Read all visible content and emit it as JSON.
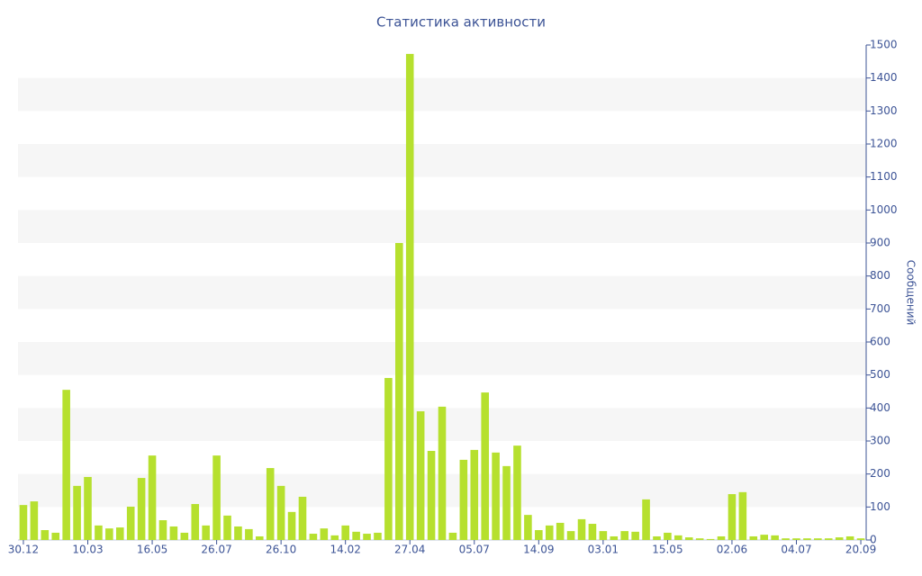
{
  "chart_data": {
    "type": "bar",
    "title": "Статистика активности",
    "y_label": "Сообщений",
    "categories": [
      "30.12",
      null,
      null,
      null,
      null,
      null,
      "10.03",
      null,
      null,
      null,
      null,
      null,
      "16.05",
      null,
      null,
      null,
      null,
      null,
      "26.07",
      null,
      null,
      null,
      null,
      null,
      "26.10",
      null,
      null,
      null,
      null,
      null,
      "14.02",
      null,
      null,
      null,
      null,
      null,
      "27.04",
      null,
      null,
      null,
      null,
      null,
      "05.07",
      null,
      null,
      null,
      null,
      null,
      "14.09",
      null,
      null,
      null,
      null,
      null,
      "03.01",
      null,
      null,
      null,
      null,
      null,
      "15.05",
      null,
      null,
      null,
      null,
      null,
      "02.06",
      null,
      null,
      null,
      null,
      null,
      "04.07",
      null,
      null,
      null,
      null,
      null,
      "20.09"
    ],
    "values": [
      106,
      117,
      30,
      22,
      455,
      164,
      191,
      44,
      35,
      38,
      101,
      188,
      256,
      60,
      41,
      22,
      109,
      44,
      256,
      74,
      41,
      33,
      11,
      218,
      164,
      85,
      131,
      19,
      35,
      14,
      44,
      25,
      19,
      22,
      491,
      900,
      1473,
      390,
      270,
      404,
      22,
      243,
      273,
      447,
      265,
      224,
      286,
      76,
      30,
      44,
      52,
      27,
      63,
      49,
      27,
      11,
      27,
      25,
      123,
      11,
      22,
      14,
      8,
      5,
      3,
      11,
      139,
      145,
      11,
      16,
      14,
      5,
      5,
      5,
      5,
      5,
      8,
      11,
      5
    ],
    "color": "#b6e02e",
    "ylim": [
      0,
      1500
    ],
    "yticks": [
      0,
      100,
      200,
      300,
      400,
      500,
      600,
      700,
      800,
      900,
      1000,
      1100,
      1200,
      1300,
      1400,
      1500
    ],
    "band_color": "#f6f6f6"
  }
}
